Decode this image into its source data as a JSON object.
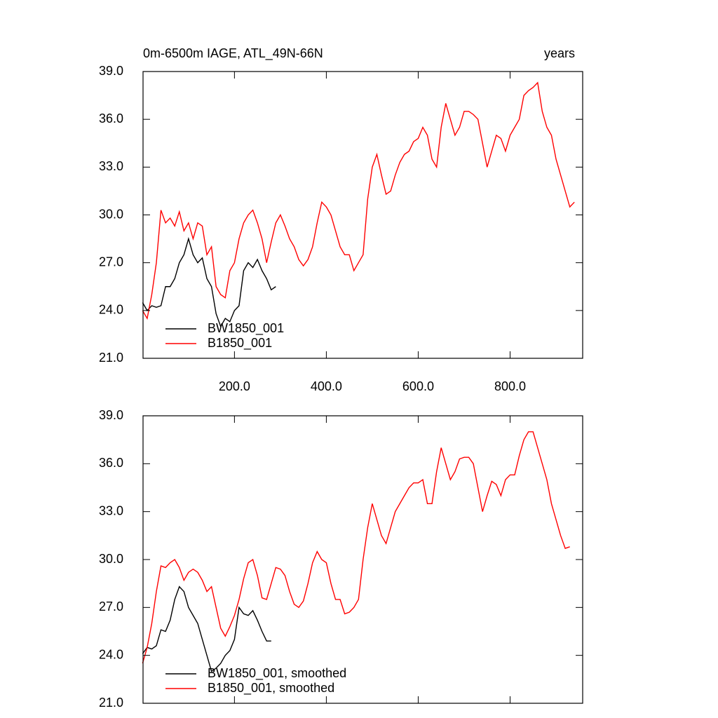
{
  "chart_data": [
    {
      "type": "line",
      "title": "0m-6500m IAGE, ATL_49N-66N",
      "subtitle": "years",
      "xlim": [
        1,
        958
      ],
      "xticks": [
        {
          "value": 200,
          "label": "200.0"
        },
        {
          "value": 400,
          "label": "400.0"
        },
        {
          "value": 600,
          "label": "600.0"
        },
        {
          "value": 800,
          "label": "800.0"
        }
      ],
      "ylim": [
        21,
        39
      ],
      "yticks": [
        {
          "value": 21,
          "label": "21.0"
        },
        {
          "value": 24,
          "label": "24.0"
        },
        {
          "value": 27,
          "label": "27.0"
        },
        {
          "value": 30,
          "label": "30.0"
        },
        {
          "value": 33,
          "label": "33.0"
        },
        {
          "value": 36,
          "label": "36.0"
        },
        {
          "value": 39,
          "label": "39.0"
        }
      ],
      "legend": "lower left",
      "series": [
        {
          "name": "BW1850_001",
          "color": "#000000",
          "x": [
            0,
            10,
            20,
            30,
            40,
            50,
            60,
            70,
            80,
            90,
            100,
            110,
            120,
            130,
            140,
            150,
            160,
            170,
            180,
            190,
            200,
            210,
            220,
            230,
            240,
            250,
            260,
            270,
            280,
            290
          ],
          "values": [
            24.5,
            24.0,
            24.3,
            24.2,
            24.3,
            25.5,
            25.5,
            26.0,
            27.0,
            27.5,
            28.5,
            27.5,
            27.0,
            27.3,
            26.0,
            25.5,
            23.8,
            23.0,
            23.5,
            23.3,
            24.0,
            24.3,
            26.5,
            27.0,
            26.7,
            27.2,
            26.5,
            26.0,
            25.3,
            25.5
          ]
        },
        {
          "name": "B1850_001",
          "color": "#ff0000",
          "x": [
            0,
            10,
            20,
            30,
            40,
            50,
            60,
            70,
            80,
            90,
            100,
            110,
            120,
            130,
            140,
            150,
            160,
            170,
            180,
            190,
            200,
            210,
            220,
            230,
            240,
            250,
            260,
            270,
            280,
            290,
            300,
            310,
            320,
            330,
            340,
            350,
            360,
            370,
            380,
            390,
            400,
            410,
            420,
            430,
            440,
            450,
            460,
            470,
            480,
            490,
            500,
            510,
            520,
            530,
            540,
            550,
            560,
            570,
            580,
            590,
            600,
            610,
            620,
            630,
            640,
            650,
            660,
            670,
            680,
            690,
            700,
            710,
            720,
            730,
            740,
            750,
            760,
            770,
            780,
            790,
            800,
            810,
            820,
            830,
            840,
            850,
            860,
            870,
            880,
            890,
            900,
            910,
            920,
            930,
            940
          ],
          "values": [
            24.0,
            23.5,
            25.0,
            27.0,
            30.3,
            29.5,
            29.8,
            29.3,
            30.2,
            29.0,
            29.5,
            28.5,
            29.5,
            29.3,
            27.5,
            28.0,
            25.5,
            25.0,
            24.8,
            26.5,
            27.0,
            28.5,
            29.5,
            30.0,
            30.3,
            29.5,
            28.5,
            27.0,
            28.3,
            29.5,
            30.0,
            29.3,
            28.5,
            28.0,
            27.2,
            26.8,
            27.2,
            28.0,
            29.5,
            30.8,
            30.5,
            30.0,
            29.0,
            28.0,
            27.5,
            27.5,
            26.5,
            27.0,
            27.5,
            31.0,
            33.0,
            33.8,
            32.5,
            31.3,
            31.5,
            32.5,
            33.3,
            33.8,
            34.0,
            34.6,
            34.8,
            35.5,
            35.0,
            33.5,
            33.0,
            35.5,
            37.0,
            36.0,
            35.0,
            35.5,
            36.5,
            36.5,
            36.3,
            36.0,
            34.5,
            33.0,
            34.0,
            35.0,
            34.8,
            34.0,
            35.0,
            35.5,
            36.0,
            37.5,
            37.8,
            38.0,
            38.3,
            36.5,
            35.5,
            35.0,
            33.5,
            32.5,
            31.5,
            30.5,
            30.8
          ]
        }
      ]
    },
    {
      "type": "line",
      "xlim": [
        1,
        958
      ],
      "xticks": [
        200,
        400,
        600,
        800
      ],
      "ylim": [
        21,
        39
      ],
      "yticks": [
        {
          "value": 21,
          "label": "21.0"
        },
        {
          "value": 24,
          "label": "24.0"
        },
        {
          "value": 27,
          "label": "27.0"
        },
        {
          "value": 30,
          "label": "30.0"
        },
        {
          "value": 33,
          "label": "33.0"
        },
        {
          "value": 36,
          "label": "36.0"
        },
        {
          "value": 39,
          "label": "39.0"
        }
      ],
      "legend": "lower left",
      "series": [
        {
          "name": "BW1850_001, smoothed",
          "color": "#000000",
          "x": [
            0,
            10,
            20,
            30,
            40,
            50,
            60,
            70,
            80,
            90,
            100,
            110,
            120,
            130,
            140,
            150,
            160,
            170,
            180,
            190,
            200,
            210,
            220,
            230,
            240,
            250,
            260,
            270,
            280
          ],
          "values": [
            24.1,
            24.5,
            24.4,
            24.6,
            25.6,
            25.5,
            26.2,
            27.5,
            28.3,
            28.0,
            27.0,
            26.5,
            26.0,
            25.0,
            24.0,
            23.0,
            23.2,
            23.5,
            24.0,
            24.3,
            25.0,
            27.0,
            26.6,
            26.5,
            26.8,
            26.2,
            25.5,
            24.9,
            24.9
          ]
        },
        {
          "name": "B1850_001, smoothed",
          "color": "#ff0000",
          "x": [
            0,
            10,
            20,
            30,
            40,
            50,
            60,
            70,
            80,
            90,
            100,
            110,
            120,
            130,
            140,
            150,
            160,
            170,
            180,
            190,
            200,
            210,
            220,
            230,
            240,
            250,
            260,
            270,
            280,
            290,
            300,
            310,
            320,
            330,
            340,
            350,
            360,
            370,
            380,
            390,
            400,
            410,
            420,
            430,
            440,
            450,
            460,
            470,
            480,
            490,
            500,
            510,
            520,
            530,
            540,
            550,
            560,
            570,
            580,
            590,
            600,
            610,
            620,
            630,
            640,
            650,
            660,
            670,
            680,
            690,
            700,
            710,
            720,
            730,
            740,
            750,
            760,
            770,
            780,
            790,
            800,
            810,
            820,
            830,
            840,
            850,
            860,
            870,
            880,
            890,
            900,
            910,
            920,
            930
          ],
          "values": [
            23.5,
            24.5,
            26.0,
            28.0,
            29.6,
            29.5,
            29.8,
            30.0,
            29.5,
            28.7,
            29.2,
            29.4,
            29.2,
            28.7,
            28.0,
            28.3,
            27.0,
            25.7,
            25.2,
            25.8,
            26.5,
            27.5,
            28.8,
            29.8,
            30.0,
            29.0,
            27.6,
            27.5,
            28.5,
            29.5,
            29.4,
            29.0,
            28.0,
            27.2,
            27.0,
            27.4,
            28.5,
            29.8,
            30.5,
            30.0,
            29.8,
            28.5,
            27.5,
            27.5,
            26.6,
            26.7,
            27.0,
            27.5,
            30.0,
            32.0,
            33.5,
            32.5,
            31.5,
            31.0,
            32.0,
            33.0,
            33.5,
            34.0,
            34.5,
            34.8,
            34.8,
            35.0,
            33.5,
            33.5,
            35.5,
            37.0,
            36.0,
            35.0,
            35.5,
            36.3,
            36.4,
            36.4,
            36.0,
            34.5,
            33.0,
            34.0,
            34.9,
            34.7,
            34.0,
            35.0,
            35.3,
            35.3,
            36.5,
            37.5,
            38.0,
            38.0,
            37.0,
            36.0,
            35.0,
            33.5,
            32.5,
            31.5,
            30.7,
            30.8
          ]
        }
      ]
    }
  ]
}
